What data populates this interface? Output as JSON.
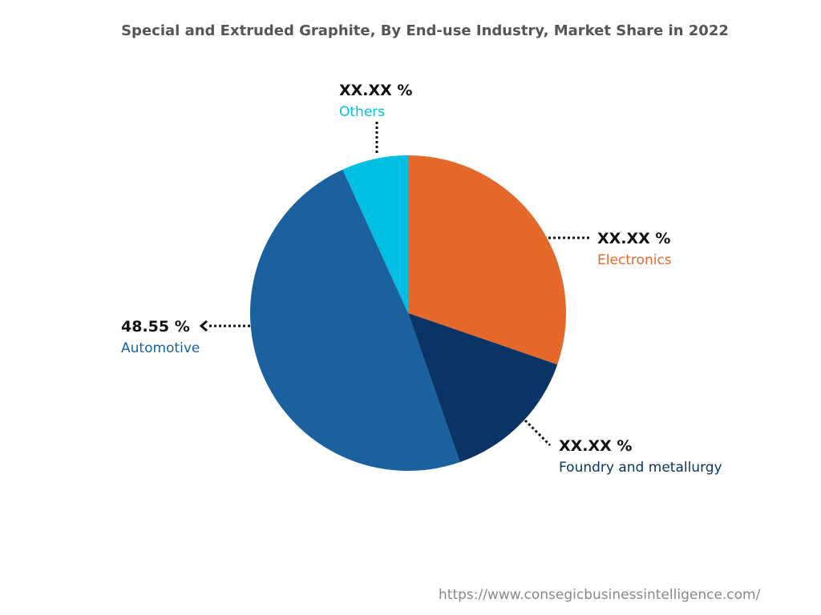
{
  "chart_data": {
    "type": "pie",
    "title": "Special and Extruded Graphite, By End-use Industry, Market Share in 2022",
    "slices": [
      {
        "name": "Electronics",
        "value": 30.3,
        "label": "XX.XX %",
        "color": "#E4692A"
      },
      {
        "name": "Foundry and metallurgy",
        "value": 14.4,
        "label": "XX.XX %",
        "color": "#0B3466"
      },
      {
        "name": "Automotive",
        "value": 48.55,
        "label": "48.55 %",
        "color": "#1A619D"
      },
      {
        "name": "Others",
        "value": 6.8,
        "label": "XX.XX %",
        "color": "#00BFE2"
      }
    ]
  },
  "source_url": "https://www.consegicbusinessintelligence.com/"
}
